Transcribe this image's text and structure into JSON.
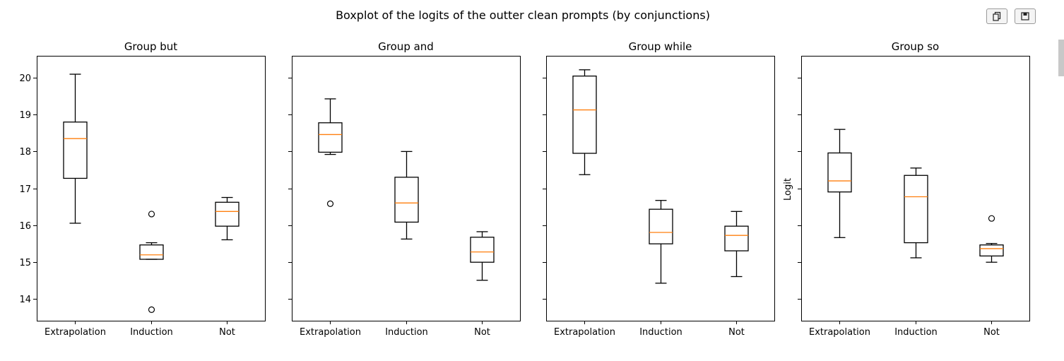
{
  "figure": {
    "title": "Boxplot of the logits of the outter clean prompts (by conjunctions)",
    "toolbar": [
      {
        "name": "copy-button",
        "icon": "copy-icon"
      },
      {
        "name": "save-button",
        "icon": "floppy-disk-icon"
      }
    ]
  },
  "chart_data": [
    {
      "type": "boxplot",
      "title": "Group but",
      "xlabel": "",
      "ylabel": "",
      "categories": [
        "Extrapolation",
        "Induction",
        "Not"
      ],
      "ylim": [
        13.4,
        20.6
      ],
      "yticks": [
        14,
        15,
        16,
        17,
        18,
        19,
        20
      ],
      "show_ytick_labels": true,
      "boxes": [
        {
          "whislo": 16.05,
          "q1": 17.27,
          "med": 18.35,
          "q3": 18.8,
          "whishi": 20.1,
          "fliers": []
        },
        {
          "whislo": 15.07,
          "q1": 15.07,
          "med": 15.19,
          "q3": 15.46,
          "whishi": 15.52,
          "fliers": [
            16.3,
            13.7
          ]
        },
        {
          "whislo": 15.6,
          "q1": 15.97,
          "med": 16.37,
          "q3": 16.62,
          "whishi": 16.75,
          "fliers": []
        }
      ]
    },
    {
      "type": "boxplot",
      "title": "Group and",
      "xlabel": "",
      "ylabel": "",
      "categories": [
        "Extrapolation",
        "Induction",
        "Not"
      ],
      "ylim": [
        13.4,
        20.6
      ],
      "yticks": [
        14,
        15,
        16,
        17,
        18,
        19,
        20
      ],
      "show_ytick_labels": false,
      "boxes": [
        {
          "whislo": 17.92,
          "q1": 17.98,
          "med": 18.46,
          "q3": 18.78,
          "whishi": 19.43,
          "fliers": [
            16.58
          ]
        },
        {
          "whislo": 15.62,
          "q1": 16.08,
          "med": 16.6,
          "q3": 17.3,
          "whishi": 18.0,
          "fliers": []
        },
        {
          "whislo": 14.5,
          "q1": 14.99,
          "med": 15.27,
          "q3": 15.67,
          "whishi": 15.82,
          "fliers": []
        }
      ]
    },
    {
      "type": "boxplot",
      "title": "Group while",
      "xlabel": "",
      "ylabel": "",
      "categories": [
        "Extrapolation",
        "Induction",
        "Not"
      ],
      "ylim": [
        13.4,
        20.6
      ],
      "yticks": [
        14,
        15,
        16,
        17,
        18,
        19,
        20
      ],
      "show_ytick_labels": false,
      "boxes": [
        {
          "whislo": 17.37,
          "q1": 17.95,
          "med": 19.13,
          "q3": 20.05,
          "whishi": 20.22,
          "fliers": []
        },
        {
          "whislo": 14.42,
          "q1": 15.49,
          "med": 15.8,
          "q3": 16.43,
          "whishi": 16.67,
          "fliers": []
        },
        {
          "whislo": 14.6,
          "q1": 15.3,
          "med": 15.72,
          "q3": 15.97,
          "whishi": 16.37,
          "fliers": []
        }
      ]
    },
    {
      "type": "boxplot",
      "title": "Group so",
      "xlabel": "",
      "ylabel": "Logit",
      "categories": [
        "Extrapolation",
        "Induction",
        "Not"
      ],
      "ylim": [
        13.4,
        20.6
      ],
      "yticks": [
        14,
        15,
        16,
        17,
        18,
        19,
        20
      ],
      "show_ytick_labels": false,
      "boxes": [
        {
          "whislo": 15.66,
          "q1": 16.9,
          "med": 17.2,
          "q3": 17.96,
          "whishi": 18.6,
          "fliers": []
        },
        {
          "whislo": 15.11,
          "q1": 15.52,
          "med": 16.77,
          "q3": 17.35,
          "whishi": 17.55,
          "fliers": []
        },
        {
          "whislo": 14.99,
          "q1": 15.16,
          "med": 15.36,
          "q3": 15.46,
          "whishi": 15.5,
          "fliers": [
            16.18
          ]
        }
      ]
    }
  ],
  "style": {
    "box_color": "#000000",
    "median_color": "#ff7f0e",
    "background": "#ffffff"
  }
}
